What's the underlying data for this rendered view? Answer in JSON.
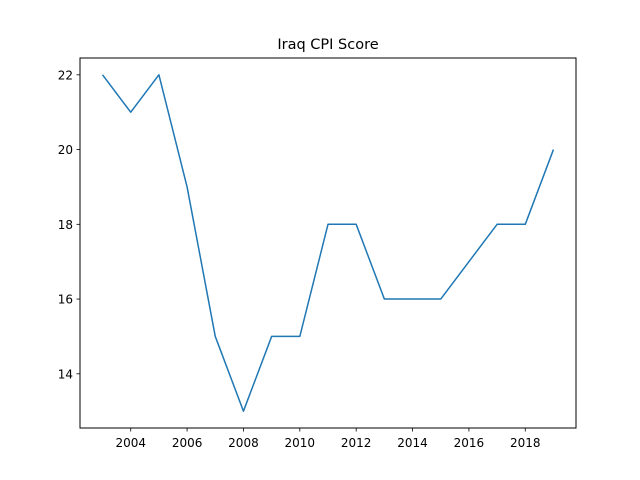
{
  "chart_data": {
    "type": "line",
    "title": "Iraq CPI Score",
    "xlabel": "",
    "ylabel": "",
    "x": [
      2003,
      2004,
      2005,
      2006,
      2007,
      2008,
      2009,
      2010,
      2011,
      2012,
      2013,
      2014,
      2015,
      2016,
      2017,
      2018,
      2019
    ],
    "series": [
      {
        "name": "",
        "values": [
          22,
          21,
          22,
          19,
          15,
          13,
          15,
          15,
          18,
          18,
          16,
          16,
          16,
          17,
          18,
          18,
          20
        ]
      }
    ],
    "xticks": [
      "2004",
      "2006",
      "2008",
      "2010",
      "2012",
      "2014",
      "2016",
      "2018"
    ],
    "yticks": [
      "14",
      "16",
      "18",
      "20",
      "22"
    ],
    "xlim": [
      2002.2,
      2019.8
    ],
    "ylim": [
      12.55,
      22.45
    ],
    "grid": false,
    "colors": {
      "line": "#1f77b4",
      "axes": "#000000"
    }
  }
}
